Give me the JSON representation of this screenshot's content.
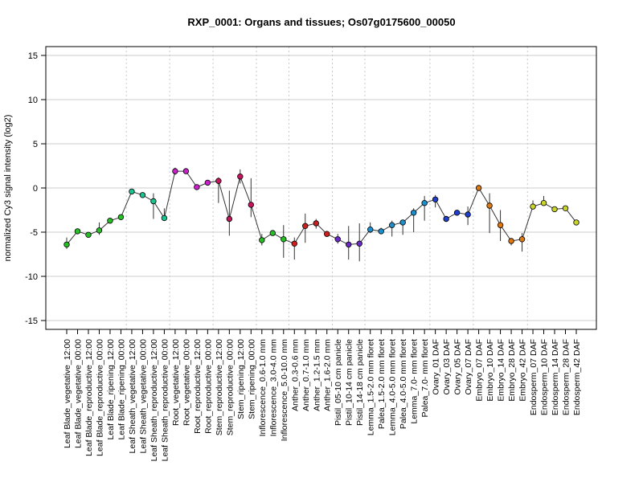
{
  "chart_data": {
    "type": "line",
    "title": "RXP_0001: Organs and tissues; Os07g0175600_00050",
    "xlabel": "",
    "ylabel": "normalized Cy3 signal intensity (log2)",
    "ylim": [
      -16,
      16
    ],
    "yticks": [
      -15,
      -10,
      -5,
      0,
      5,
      10,
      15
    ],
    "grid": true,
    "categories": [
      "Leaf Blade_vegetative_12:00",
      "Leaf Blade_vegetative_00:00",
      "Leaf Blade_reproductive_12:00",
      "Leaf Blade_reproductive_00:00",
      "Leaf Blade_ripening_12:00",
      "Leaf Blade_ripening_00:00",
      "Leaf Sheath_vegetative_12:00",
      "Leaf Sheath_vegetative_00:00",
      "Leaf Sheath_reproductive_12:00",
      "Leaf Sheath_reproductive_00:00",
      "Root_vegetative_12:00",
      "Root_vegetative_00:00",
      "Root_reproductive_12:00",
      "Root_reproductive_00:00",
      "Stem_reproductive_12:00",
      "Stem_reproductive_00:00",
      "Stem_ripening_12:00",
      "Stem_ripening_00:00",
      "Inflorescence_0.6-1.0 mm",
      "Inflorescence_3.0-4.0 mm",
      "Inflorescence_5.0-10.0 mm",
      "Anther_0.3-0.6 mm",
      "Anther_0.7-1.0 mm",
      "Anther_1.2-1.5 mm",
      "Anther_1.6-2.0 mm",
      "Pistil_05-10 cm panicle",
      "Pistil_10-14 cm panicle",
      "Pistil_14-18 cm panicle",
      "Lemma_1.5-2.0 mm floret",
      "Palea_1.5-2.0 mm floret",
      "Lemma_4.0-5.0 mm floret",
      "Palea_4.0-5.0 mm floret",
      "Lemma_7.0- mm floret",
      "Palea_7.0- mm floret",
      "Ovary_01 DAF",
      "Ovary_03 DAF",
      "Ovary_05 DAF",
      "Ovary_07 DAF",
      "Embryo_07 DAF",
      "Embryo_10 DAF",
      "Embryo_14 DAF",
      "Embryo_28 DAF",
      "Embryo_42 DAF",
      "Endosperm_07 DAF",
      "Endosperm_10 DAF",
      "Endosperm_14 DAF",
      "Endosperm_28 DAF",
      "Endosperm_42 DAF"
    ],
    "values": [
      -6.4,
      -4.9,
      -5.3,
      -4.8,
      -3.7,
      -3.3,
      -0.4,
      -0.8,
      -1.5,
      -3.4,
      1.9,
      1.9,
      0.1,
      0.6,
      0.8,
      -3.5,
      1.3,
      -1.9,
      -5.9,
      -5.1,
      -5.8,
      -6.3,
      -4.3,
      -4.0,
      -5.2,
      -5.8,
      -6.4,
      -6.3,
      -4.7,
      -4.9,
      -4.2,
      -3.9,
      -2.8,
      -1.7,
      -1.3,
      -3.5,
      -2.8,
      -3.0,
      0.0,
      -2.0,
      -4.2,
      -6.0,
      -5.8,
      -2.1,
      -1.7,
      -2.4,
      -2.3,
      -3.9
    ],
    "error_low": [
      -6.9,
      -5.0,
      -5.4,
      -5.3,
      -3.8,
      -3.5,
      -0.4,
      -0.9,
      -3.5,
      -3.5,
      1.5,
      1.7,
      -0.1,
      0.4,
      -1.7,
      -5.4,
      0.5,
      -3.3,
      -6.5,
      -5.3,
      -7.9,
      -8.1,
      -6.2,
      -4.6,
      -5.4,
      -6.3,
      -8.1,
      -8.3,
      -5.1,
      -5.2,
      -5.5,
      -5.3,
      -5.0,
      -3.7,
      -2.2,
      -3.7,
      -3.0,
      -4.2,
      -0.1,
      -5.1,
      -6.0,
      -6.5,
      -7.2,
      -2.3,
      -1.8,
      -2.5,
      -2.6,
      -4.0
    ],
    "error_high": [
      -5.6,
      -4.8,
      -5.1,
      -3.9,
      -3.6,
      -3.1,
      -0.3,
      -0.7,
      -0.6,
      -2.3,
      2.3,
      2.1,
      0.3,
      0.8,
      1.2,
      -0.3,
      2.1,
      1.1,
      -5.2,
      -4.9,
      -4.2,
      -5.6,
      -2.9,
      -3.5,
      -4.9,
      -5.2,
      -4.3,
      -4.0,
      -3.9,
      -4.5,
      -3.7,
      -3.7,
      -2.3,
      -0.9,
      -0.8,
      -3.3,
      -2.6,
      -2.1,
      0.1,
      -0.6,
      -2.5,
      -5.7,
      -5.1,
      -1.4,
      -0.9,
      -2.2,
      -2.0,
      -3.8
    ],
    "colors": [
      "#26c026",
      "#26c026",
      "#26c026",
      "#26c026",
      "#26c026",
      "#26c026",
      "#19c490",
      "#19c490",
      "#19c490",
      "#19c490",
      "#cc1fcc",
      "#cc1fcc",
      "#cc1fcc",
      "#cc1fcc",
      "#c7155e",
      "#c7155e",
      "#c7155e",
      "#c7155e",
      "#26c026",
      "#26c026",
      "#26c026",
      "#cc1f1f",
      "#cc1f1f",
      "#cc1f1f",
      "#cc1f1f",
      "#6b28c4",
      "#6b28c4",
      "#6b28c4",
      "#1f8fcc",
      "#1f8fcc",
      "#1f8fcc",
      "#1f8fcc",
      "#1f8fcc",
      "#1f8fcc",
      "#1f3fcc",
      "#1f3fcc",
      "#1f3fcc",
      "#1f3fcc",
      "#e07a10",
      "#e07a10",
      "#e07a10",
      "#e07a10",
      "#e07a10",
      "#c9d42a",
      "#c9d42a",
      "#c9d42a",
      "#c9d42a",
      "#c9d42a"
    ],
    "group_separators_after": [
      5,
      9,
      13,
      17,
      20,
      24,
      27,
      33,
      37,
      42
    ]
  }
}
